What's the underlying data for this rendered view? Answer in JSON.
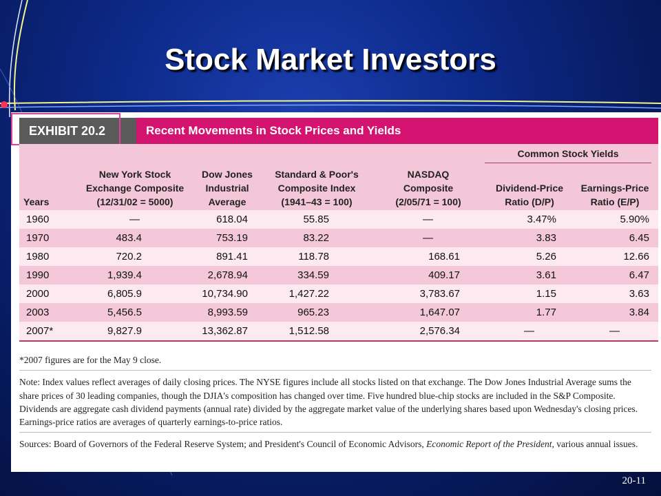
{
  "slide": {
    "title": "Stock Market Investors",
    "page_number": "20-11"
  },
  "exhibit": {
    "label": "EXHIBIT 20.2",
    "title": "Recent Movements in Stock Prices and Yields",
    "group_header": "Common Stock Yields",
    "columns": [
      "Years",
      "New York Stock Exchange Composite (12/31/02 = 5000)",
      "Dow Jones Industrial Average",
      "Standard & Poor's Composite Index (1941–43 = 100)",
      "NASDAQ Composite (2/05/71 = 100)",
      "Dividend-Price Ratio (D/P)",
      "Earnings-Price Ratio (E/P)"
    ],
    "column_lines": [
      [
        "Years"
      ],
      [
        "New York Stock",
        "Exchange Composite",
        "(12/31/02 = 5000)"
      ],
      [
        "Dow Jones",
        "Industrial",
        "Average"
      ],
      [
        "Standard & Poor's",
        "Composite Index",
        "(1941–43 = 100)"
      ],
      [
        "NASDAQ",
        "Composite",
        "(2/05/71 = 100)"
      ],
      [
        "Dividend-Price",
        "Ratio (D/P)"
      ],
      [
        "Earnings-Price",
        "Ratio (E/P)"
      ]
    ],
    "rows": [
      [
        "1960",
        "—",
        "618.04",
        "55.85",
        "—",
        "3.47%",
        "5.90%"
      ],
      [
        "1970",
        "483.4",
        "753.19",
        "83.22",
        "—",
        "3.83",
        "6.45"
      ],
      [
        "1980",
        "720.2",
        "891.41",
        "118.78",
        "168.61",
        "5.26",
        "12.66"
      ],
      [
        "1990",
        "1,939.4",
        "2,678.94",
        "334.59",
        "409.17",
        "3.61",
        "6.47"
      ],
      [
        "2000",
        "6,805.9",
        "10,734.90",
        "1,427.22",
        "3,783.67",
        "1.15",
        "3.63"
      ],
      [
        "2003",
        "5,456.5",
        "8,993.59",
        "965.23",
        "1,647.07",
        "1.77",
        "3.84"
      ],
      [
        "2007*",
        "9,827.9",
        "13,362.87",
        "1,512.58",
        "2,576.34",
        "—",
        "—"
      ]
    ],
    "footnote": "*2007 figures are for the May 9 close.",
    "note": "Note: Index values reflect averages of daily closing prices. The NYSE figures include all stocks listed on that exchange. The Dow Jones Industrial Average sums the share prices of 30 leading companies, though the DJIA's composition has changed over time. Five hundred blue-chip stocks are included in the S&P Composite. Dividends are aggregate cash dividend payments (annual rate) divided by the aggregate market value of the underlying shares based upon Wednesday's closing prices. Earnings-price ratios are averages of quarterly earnings-to-price ratios.",
    "sources_text": "Sources: Board of Governors of the Federal Reserve System; and President's Council of Economic Advisors,",
    "sources_italic": "Economic Report of the President,",
    "sources_tail": "various annual issues."
  },
  "colors": {
    "background": "#0d2a8a",
    "exhibit_accent": "#d3136f",
    "header_band": "#f3c6d8",
    "row_light": "#fde9f0",
    "row_dark": "#f4c8d8"
  }
}
